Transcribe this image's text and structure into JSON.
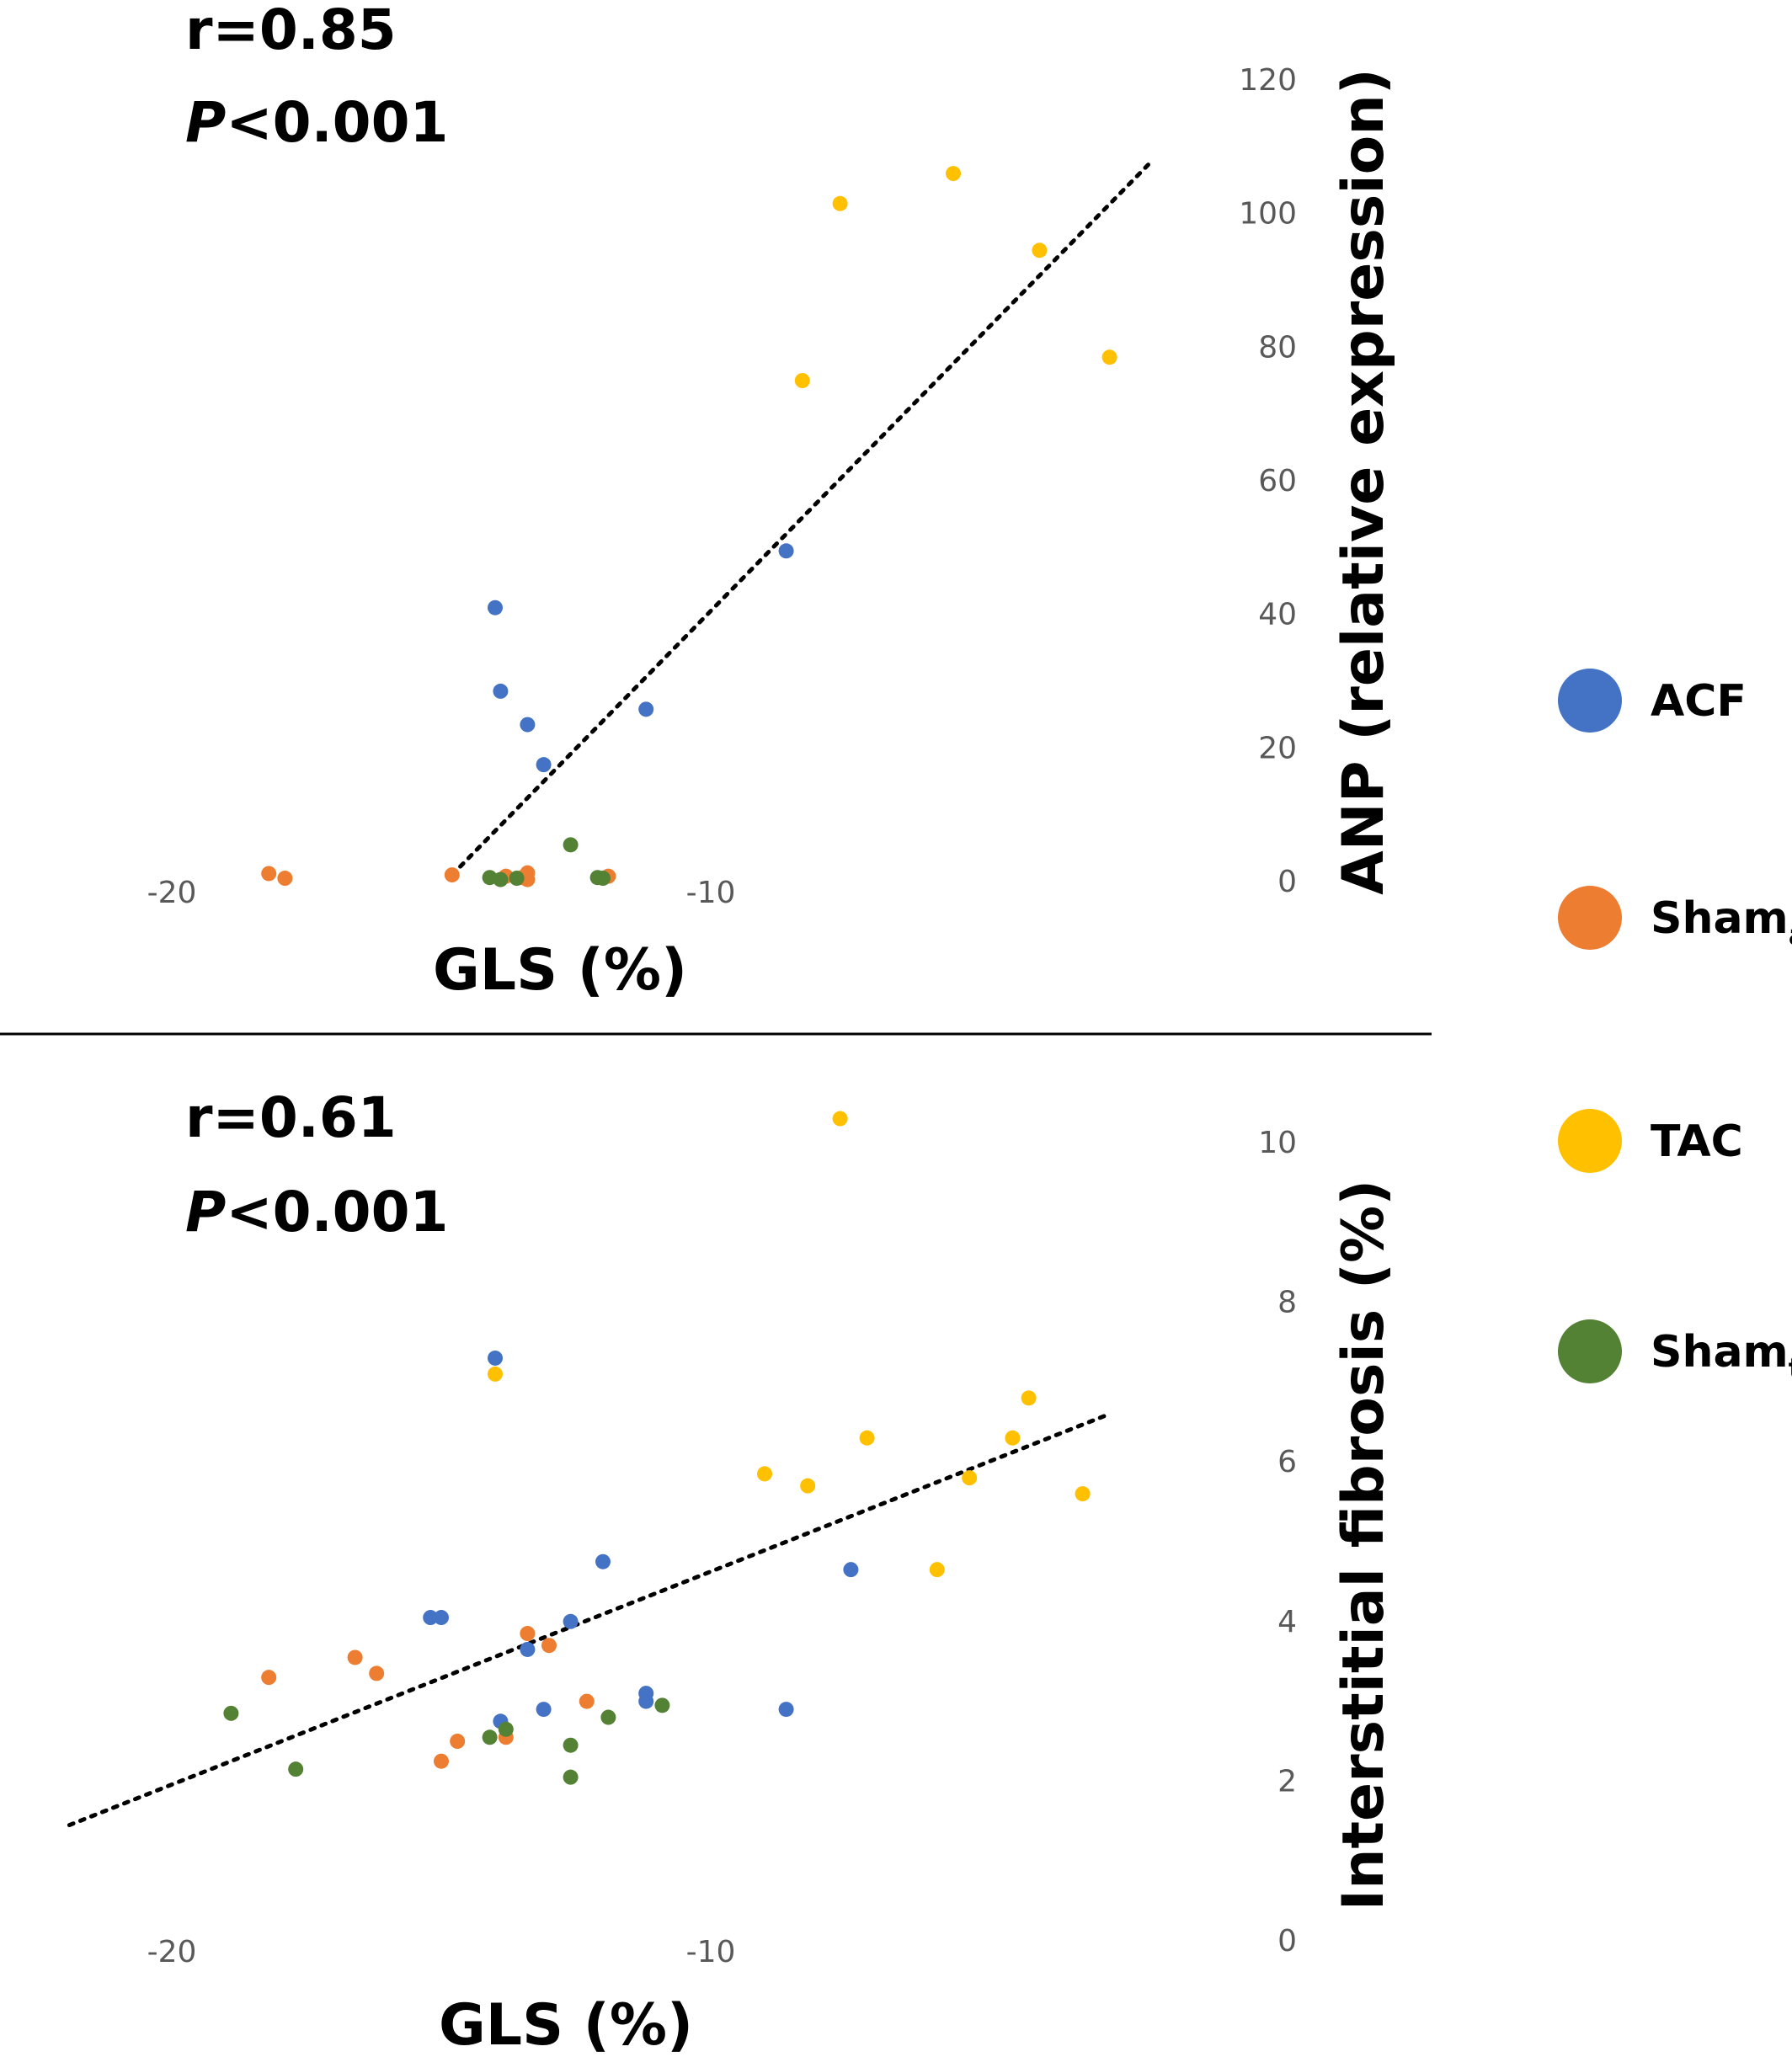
{
  "colors": {
    "ACF": "#4472C4",
    "Sham_a": "#ED7D31",
    "TAC": "#FFC000",
    "Sham_t": "#548235",
    "trendline": "#000000",
    "divider": "#000000"
  },
  "legend": [
    {
      "key": "ACF",
      "label": "ACF",
      "sub": ""
    },
    {
      "key": "Sham_a",
      "label": "Sham",
      "sub": "a"
    },
    {
      "key": "TAC",
      "label": "TAC",
      "sub": ""
    },
    {
      "key": "Sham_t",
      "label": "Sham",
      "sub": "t"
    }
  ],
  "chart_data": [
    {
      "type": "scatter",
      "stat_r": "r=0.85",
      "stat_p_italic": "P",
      "stat_p_rest": "<0.001",
      "xlabel": "GLS (%)",
      "ylabel": "ANP (relative expression)",
      "xticks": [
        "-20",
        "-10"
      ],
      "yticks": [
        "0",
        "20",
        "40",
        "60",
        "80",
        "100",
        "120"
      ],
      "xlim": [
        -21,
        -1
      ],
      "ylim": [
        0,
        120
      ],
      "grid": false,
      "trendline": {
        "style": "dotted",
        "from": [
          -14.8,
          1
        ],
        "to": [
          -1.8,
          108
        ]
      },
      "series": [
        {
          "name": "ACF",
          "key": "ACF",
          "points": [
            [
              -14,
              41
            ],
            [
              -13.9,
              28.5
            ],
            [
              -13.4,
              23.5
            ],
            [
              -13.1,
              17.5
            ],
            [
              -11.2,
              25.8
            ],
            [
              -8.6,
              49.5
            ]
          ]
        },
        {
          "name": "Sham_a",
          "key": "Sham_a",
          "points": [
            [
              -18.2,
              1.2
            ],
            [
              -17.9,
              0.5
            ],
            [
              -14.8,
              1.0
            ],
            [
              -13.8,
              0.8
            ],
            [
              -13.5,
              0.6
            ],
            [
              -13.4,
              1.3
            ],
            [
              -13.4,
              0.3
            ],
            [
              -11.9,
              0.8
            ]
          ]
        },
        {
          "name": "TAC",
          "key": "TAC",
          "points": [
            [
              -7.6,
              101.5
            ],
            [
              -5.5,
              106
            ],
            [
              -3.9,
              94.5
            ],
            [
              -8.3,
              75
            ],
            [
              -2.6,
              78.5
            ]
          ]
        },
        {
          "name": "Sham_t",
          "key": "Sham_t",
          "points": [
            [
              -14.1,
              0.6
            ],
            [
              -13.9,
              0.3
            ],
            [
              -13.6,
              0.5
            ],
            [
              -12.6,
              5.5
            ],
            [
              -12.1,
              0.6
            ],
            [
              -12,
              0.5
            ]
          ]
        }
      ]
    },
    {
      "type": "scatter",
      "stat_r": "r=0.61",
      "stat_p_italic": "P",
      "stat_p_rest": "<0.001",
      "xlabel": "GLS (%)",
      "ylabel": "Interstitial fibrosis (%)",
      "xticks": [
        "-20",
        "-10"
      ],
      "yticks": [
        "0",
        "2",
        "4",
        "6",
        "8",
        "10"
      ],
      "xlim": [
        -21,
        -1
      ],
      "ylim": [
        0,
        10
      ],
      "grid": false,
      "trendline": {
        "style": "dotted",
        "from": [
          -21.9,
          1.45
        ],
        "to": [
          -2.6,
          6.6
        ]
      },
      "series": [
        {
          "name": "ACF",
          "key": "ACF",
          "points": [
            [
              -14,
              7.3
            ],
            [
              -12,
              4.75
            ],
            [
              -15.2,
              4.05
            ],
            [
              -15,
              4.05
            ],
            [
              -12.6,
              4.0
            ],
            [
              -13.4,
              3.65
            ],
            [
              -11.2,
              3.1
            ],
            [
              -11.2,
              3.0
            ],
            [
              -13.9,
              2.75
            ],
            [
              -13.1,
              2.9
            ],
            [
              -8.6,
              2.9
            ],
            [
              -7.4,
              4.65
            ]
          ]
        },
        {
          "name": "Sham_a",
          "key": "Sham_a",
          "points": [
            [
              -18.2,
              3.3
            ],
            [
              -16.6,
              3.55
            ],
            [
              -16.2,
              3.35
            ],
            [
              -15,
              2.25
            ],
            [
              -14.7,
              2.5
            ],
            [
              -13.4,
              3.85
            ],
            [
              -13,
              3.7
            ],
            [
              -13.8,
              2.55
            ],
            [
              -12.3,
              3.0
            ]
          ]
        },
        {
          "name": "TAC",
          "key": "TAC",
          "points": [
            [
              -7.6,
              10.3
            ],
            [
              -14,
              7.1
            ],
            [
              -4.1,
              6.8
            ],
            [
              -7.1,
              6.3
            ],
            [
              -4.4,
              6.3
            ],
            [
              -9,
              5.85
            ],
            [
              -8.2,
              5.7
            ],
            [
              -5.2,
              5.8
            ],
            [
              -3.1,
              5.6
            ],
            [
              -5.8,
              4.65
            ]
          ]
        },
        {
          "name": "Sham_t",
          "key": "Sham_t",
          "points": [
            [
              -18.9,
              2.85
            ],
            [
              -17.7,
              2.15
            ],
            [
              -14.1,
              2.55
            ],
            [
              -13.8,
              2.65
            ],
            [
              -12.6,
              2.45
            ],
            [
              -12.6,
              2.05
            ],
            [
              -11.9,
              2.8
            ],
            [
              -10.9,
              2.95
            ]
          ]
        }
      ]
    }
  ]
}
